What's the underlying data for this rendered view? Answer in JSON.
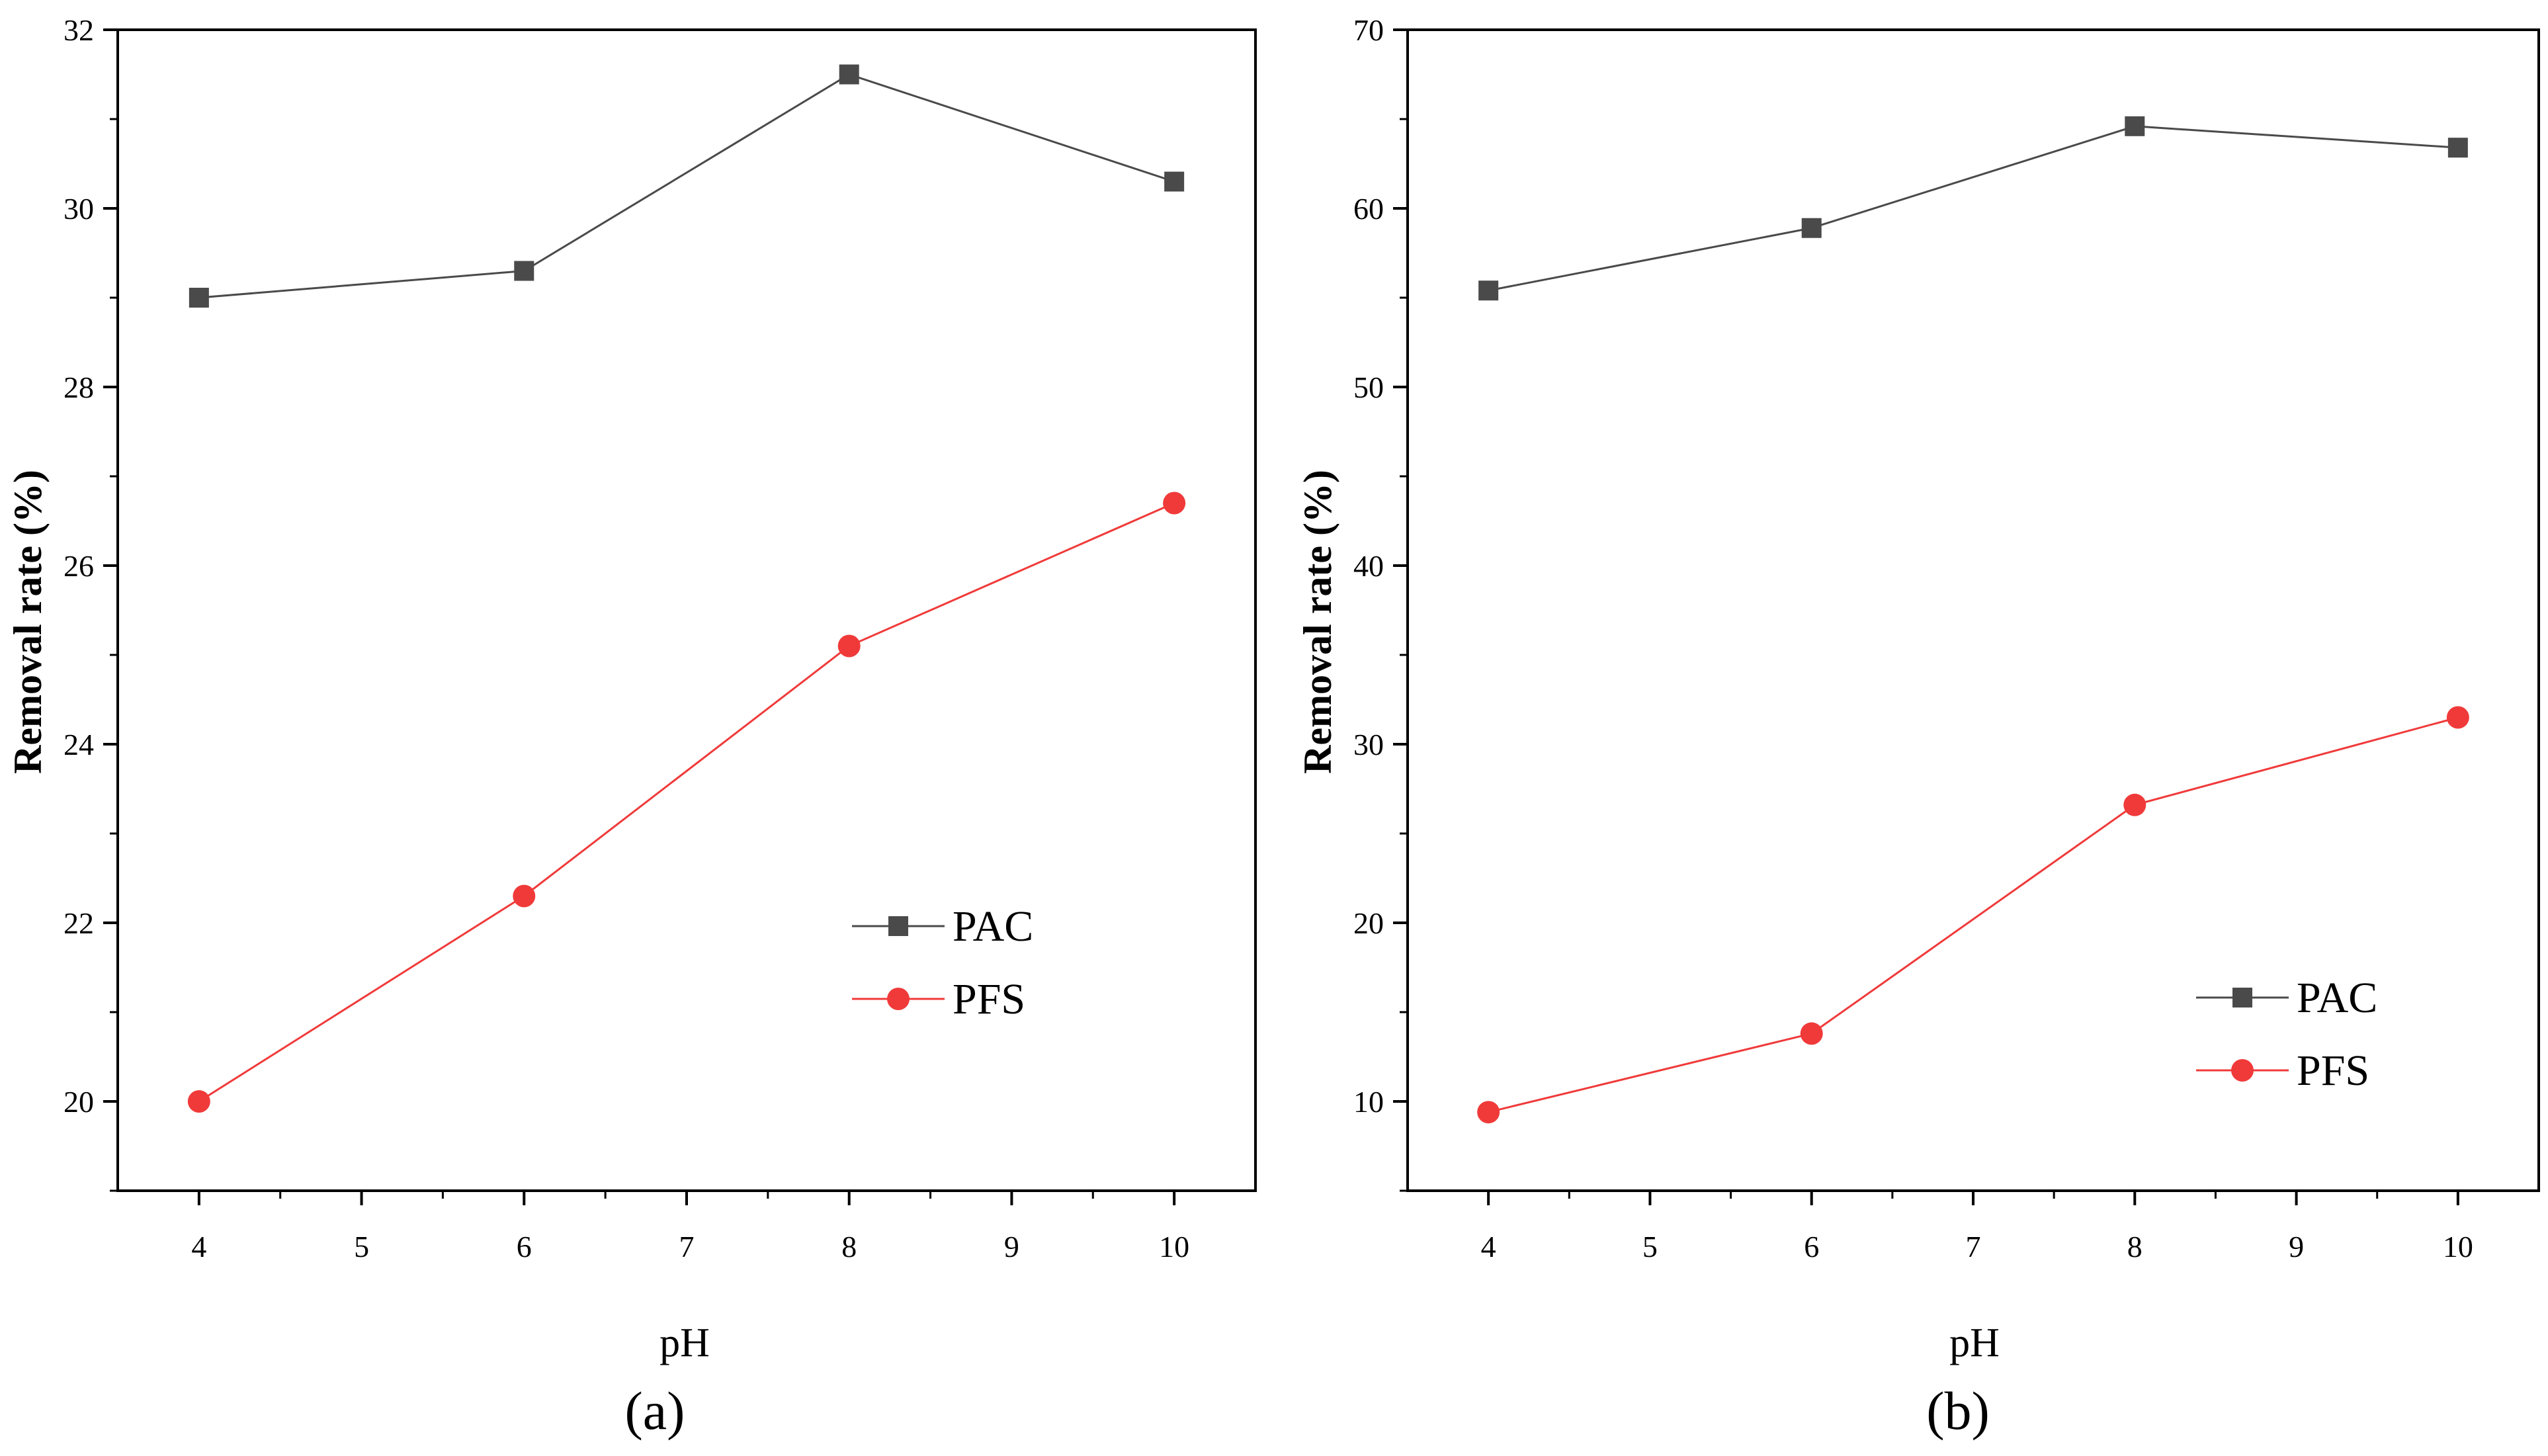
{
  "chart_data": [
    {
      "type": "line",
      "panel_label": "(a)",
      "xlabel": "pH",
      "ylabel": "Removal rate (%)",
      "xlim": [
        3.5,
        10.5
      ],
      "ylim": [
        19,
        32
      ],
      "x_ticks": [
        4,
        5,
        6,
        7,
        8,
        9,
        10
      ],
      "x_tick_labels": [
        "4",
        "5",
        "6",
        "7",
        "8",
        "9",
        "10"
      ],
      "y_ticks": [
        20,
        22,
        24,
        26,
        28,
        30,
        32
      ],
      "y_tick_labels": [
        "20",
        "22",
        "24",
        "26",
        "28",
        "30",
        "32"
      ],
      "legend_position": "bottom-right",
      "x": [
        4,
        6,
        8,
        10
      ],
      "series": [
        {
          "name": "PAC",
          "marker": "square",
          "color": "#4a4a4a",
          "values": [
            29.0,
            29.3,
            31.5,
            30.3
          ]
        },
        {
          "name": "PFS",
          "marker": "circle",
          "color": "#f03a3a",
          "values": [
            20.0,
            22.3,
            25.1,
            26.7
          ]
        }
      ]
    },
    {
      "type": "line",
      "panel_label": "(b)",
      "xlabel": "pH",
      "ylabel": "Removal rate (%)",
      "xlim": [
        3.5,
        10.5
      ],
      "ylim": [
        5,
        70
      ],
      "x_ticks": [
        4,
        5,
        6,
        7,
        8,
        9,
        10
      ],
      "x_tick_labels": [
        "4",
        "5",
        "6",
        "7",
        "8",
        "9",
        "10"
      ],
      "y_ticks": [
        10,
        20,
        30,
        40,
        50,
        60,
        70
      ],
      "y_tick_labels": [
        "10",
        "20",
        "30",
        "40",
        "50",
        "60",
        "70"
      ],
      "legend_position": "bottom-right",
      "x": [
        4,
        6,
        8,
        10
      ],
      "series": [
        {
          "name": "PAC",
          "marker": "square",
          "color": "#4a4a4a",
          "values": [
            55.4,
            58.9,
            64.6,
            63.4
          ]
        },
        {
          "name": "PFS",
          "marker": "circle",
          "color": "#f03a3a",
          "values": [
            9.4,
            13.8,
            26.6,
            31.5
          ]
        }
      ]
    }
  ]
}
